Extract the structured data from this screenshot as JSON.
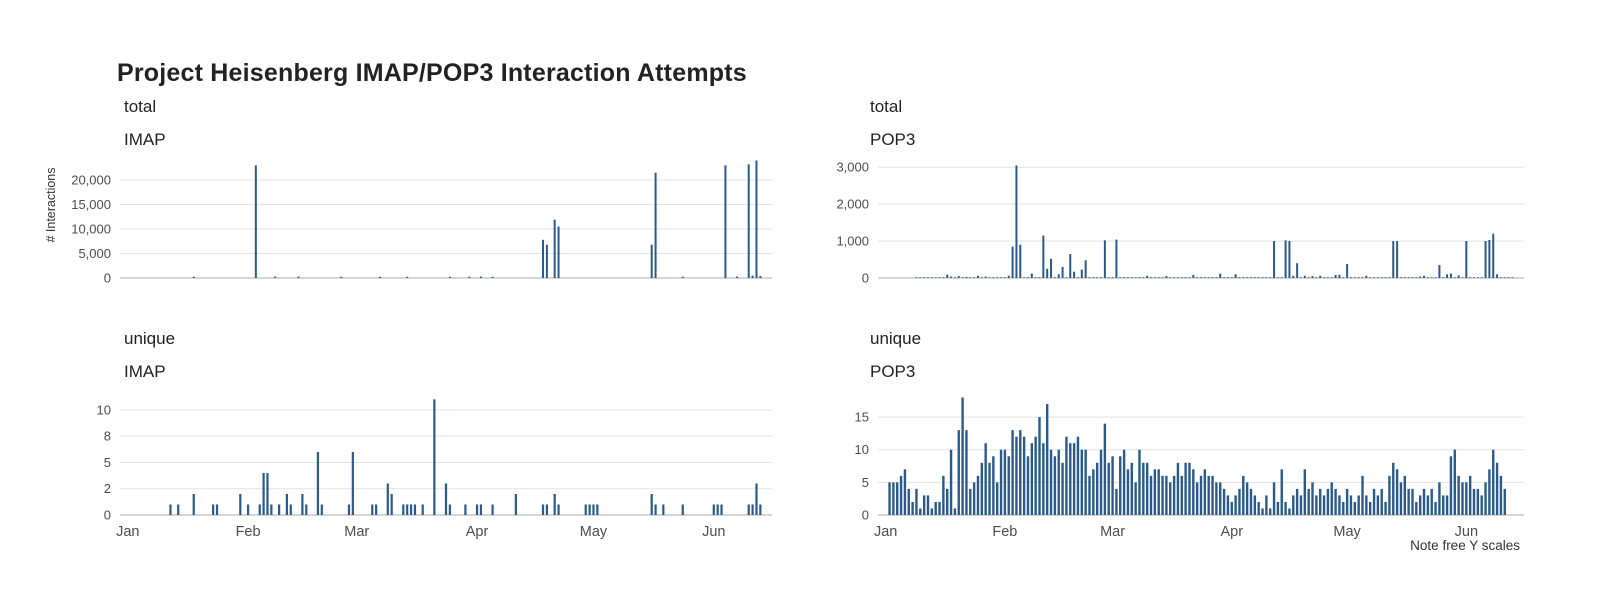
{
  "title": "Project Heisenberg IMAP/POP3 Interaction Attempts",
  "note": "Note free Y scales",
  "y_axis_title": "# Interactions",
  "colors": {
    "bar": "#2a5a8c",
    "grid": "#e3e3e3",
    "axis_line": "#c9c9c9",
    "tick_text": "#4d4d4d",
    "title_text": "#222222"
  },
  "chart_data": [
    {
      "type": "bar",
      "row": "total",
      "protocol": "IMAP",
      "position": "top-left",
      "ylabel": "# Interactions",
      "ylim": [
        0,
        24500
      ],
      "y_ticks": [
        {
          "v": 0,
          "label": "0"
        },
        {
          "v": 5000,
          "label": "5,000"
        },
        {
          "v": 10000,
          "label": "10,000"
        },
        {
          "v": 15000,
          "label": "15,000"
        },
        {
          "v": 20000,
          "label": "20,000"
        }
      ],
      "x_ticks": [
        {
          "day": 0,
          "label": "Jan"
        },
        {
          "day": 31,
          "label": "Feb"
        },
        {
          "day": 59,
          "label": "Mar"
        },
        {
          "day": 90,
          "label": "Apr"
        },
        {
          "day": 120,
          "label": "May"
        },
        {
          "day": 151,
          "label": "Jun"
        }
      ],
      "show_x_labels": false,
      "bars": [
        [
          17,
          250
        ],
        [
          33,
          23000
        ],
        [
          38,
          280
        ],
        [
          44,
          280
        ],
        [
          55,
          250
        ],
        [
          65,
          250
        ],
        [
          72,
          250
        ],
        [
          83,
          250
        ],
        [
          88,
          250
        ],
        [
          91,
          280
        ],
        [
          94,
          250
        ],
        [
          107,
          7800
        ],
        [
          108,
          6800
        ],
        [
          110,
          11900
        ],
        [
          111,
          10500
        ],
        [
          135,
          6800
        ],
        [
          136,
          21500
        ],
        [
          143,
          250
        ],
        [
          154,
          23000
        ],
        [
          157,
          300
        ],
        [
          160,
          23200
        ],
        [
          161,
          500
        ],
        [
          162,
          24000
        ],
        [
          163,
          400
        ]
      ]
    },
    {
      "type": "bar",
      "row": "total",
      "protocol": "POP3",
      "position": "top-right",
      "ylim": [
        0,
        3250
      ],
      "y_ticks": [
        {
          "v": 0,
          "label": "0"
        },
        {
          "v": 1000,
          "label": "1,000"
        },
        {
          "v": 2000,
          "label": "2,000"
        },
        {
          "v": 3000,
          "label": "3,000"
        }
      ],
      "x_ticks": [
        {
          "day": 0,
          "label": "Jan"
        },
        {
          "day": 31,
          "label": "Feb"
        },
        {
          "day": 59,
          "label": "Mar"
        },
        {
          "day": 90,
          "label": "Apr"
        },
        {
          "day": 120,
          "label": "May"
        },
        {
          "day": 151,
          "label": "Jun"
        }
      ],
      "show_x_labels": false,
      "baseline_noise": {
        "from": 8,
        "to": 163,
        "value": 18
      },
      "bars": [
        [
          16,
          90
        ],
        [
          17,
          40
        ],
        [
          19,
          50
        ],
        [
          21,
          30
        ],
        [
          24,
          60
        ],
        [
          26,
          40
        ],
        [
          32,
          60
        ],
        [
          33,
          850
        ],
        [
          34,
          3050
        ],
        [
          35,
          900
        ],
        [
          38,
          120
        ],
        [
          41,
          1150
        ],
        [
          42,
          250
        ],
        [
          43,
          520
        ],
        [
          45,
          100
        ],
        [
          46,
          300
        ],
        [
          48,
          650
        ],
        [
          49,
          170
        ],
        [
          51,
          230
        ],
        [
          52,
          480
        ],
        [
          57,
          1020
        ],
        [
          60,
          1040
        ],
        [
          68,
          60
        ],
        [
          73,
          50
        ],
        [
          80,
          80
        ],
        [
          87,
          120
        ],
        [
          91,
          100
        ],
        [
          101,
          1000
        ],
        [
          104,
          1020
        ],
        [
          105,
          1000
        ],
        [
          106,
          60
        ],
        [
          107,
          400
        ],
        [
          109,
          60
        ],
        [
          111,
          50
        ],
        [
          113,
          60
        ],
        [
          117,
          80
        ],
        [
          118,
          90
        ],
        [
          120,
          380
        ],
        [
          125,
          60
        ],
        [
          132,
          1000
        ],
        [
          133,
          1000
        ],
        [
          139,
          40
        ],
        [
          140,
          60
        ],
        [
          144,
          350
        ],
        [
          146,
          100
        ],
        [
          147,
          120
        ],
        [
          149,
          70
        ],
        [
          151,
          1000
        ],
        [
          156,
          1000
        ],
        [
          157,
          1030
        ],
        [
          158,
          1200
        ],
        [
          159,
          100
        ]
      ]
    },
    {
      "type": "bar",
      "row": "unique",
      "protocol": "IMAP",
      "position": "bottom-left",
      "ylim": [
        0,
        11.8
      ],
      "y_ticks": [
        {
          "v": 0,
          "label": "0"
        },
        {
          "v": 2.5,
          "label": "2"
        },
        {
          "v": 5,
          "label": "5"
        },
        {
          "v": 7.5,
          "label": "8"
        },
        {
          "v": 10,
          "label": "10"
        }
      ],
      "x_ticks": [
        {
          "day": 0,
          "label": "Jan"
        },
        {
          "day": 31,
          "label": "Feb"
        },
        {
          "day": 59,
          "label": "Mar"
        },
        {
          "day": 90,
          "label": "Apr"
        },
        {
          "day": 120,
          "label": "May"
        },
        {
          "day": 151,
          "label": "Jun"
        }
      ],
      "show_x_labels": true,
      "bars": [
        [
          11,
          1
        ],
        [
          13,
          1
        ],
        [
          17,
          2
        ],
        [
          22,
          1
        ],
        [
          23,
          1
        ],
        [
          29,
          2
        ],
        [
          31,
          1
        ],
        [
          34,
          1
        ],
        [
          35,
          4
        ],
        [
          36,
          4
        ],
        [
          37,
          1
        ],
        [
          39,
          1
        ],
        [
          41,
          2
        ],
        [
          42,
          1
        ],
        [
          45,
          2
        ],
        [
          46,
          1
        ],
        [
          49,
          6
        ],
        [
          50,
          1
        ],
        [
          57,
          1
        ],
        [
          58,
          6
        ],
        [
          63,
          1
        ],
        [
          64,
          1
        ],
        [
          67,
          3
        ],
        [
          68,
          2
        ],
        [
          71,
          1
        ],
        [
          72,
          1
        ],
        [
          73,
          1
        ],
        [
          74,
          1
        ],
        [
          76,
          1
        ],
        [
          79,
          11
        ],
        [
          82,
          3
        ],
        [
          83,
          1
        ],
        [
          87,
          1
        ],
        [
          90,
          1
        ],
        [
          91,
          1
        ],
        [
          94,
          1
        ],
        [
          100,
          2
        ],
        [
          107,
          1
        ],
        [
          108,
          1
        ],
        [
          110,
          2
        ],
        [
          111,
          1
        ],
        [
          118,
          1
        ],
        [
          119,
          1
        ],
        [
          120,
          1
        ],
        [
          121,
          1
        ],
        [
          135,
          2
        ],
        [
          136,
          1
        ],
        [
          138,
          1
        ],
        [
          143,
          1
        ],
        [
          151,
          1
        ],
        [
          152,
          1
        ],
        [
          153,
          1
        ],
        [
          160,
          1
        ],
        [
          161,
          1
        ],
        [
          162,
          3
        ],
        [
          163,
          1
        ]
      ]
    },
    {
      "type": "bar",
      "row": "unique",
      "protocol": "POP3",
      "position": "bottom-right",
      "ylim": [
        0,
        19
      ],
      "y_ticks": [
        {
          "v": 0,
          "label": "0"
        },
        {
          "v": 5,
          "label": "5"
        },
        {
          "v": 10,
          "label": "10"
        },
        {
          "v": 15,
          "label": "15"
        }
      ],
      "x_ticks": [
        {
          "day": 0,
          "label": "Jan"
        },
        {
          "day": 31,
          "label": "Feb"
        },
        {
          "day": 59,
          "label": "Mar"
        },
        {
          "day": 90,
          "label": "Apr"
        },
        {
          "day": 120,
          "label": "May"
        },
        {
          "day": 151,
          "label": "Jun"
        }
      ],
      "show_x_labels": true,
      "daily_series": {
        "start_day": 1,
        "values": [
          5,
          5,
          5,
          6,
          7,
          4,
          2,
          4,
          1,
          3,
          3,
          1,
          2,
          2,
          6,
          4,
          10,
          1,
          13,
          18,
          13,
          4,
          5,
          6,
          8,
          11,
          8,
          9,
          5,
          10,
          10,
          9,
          13,
          12,
          13,
          12,
          9,
          11,
          12,
          15,
          11,
          17,
          10,
          9,
          10,
          8,
          12,
          11,
          11,
          12,
          10,
          10,
          6,
          7,
          8,
          10,
          14,
          8,
          9,
          4,
          9,
          10,
          7,
          8,
          5,
          10,
          8,
          8,
          6,
          7,
          7,
          6,
          6,
          5,
          6,
          8,
          6,
          8,
          8,
          7,
          5,
          6,
          7,
          6,
          6,
          5,
          5,
          4,
          3,
          2,
          3,
          4,
          6,
          5,
          4,
          3,
          2,
          1,
          3,
          1,
          5,
          2,
          7,
          2,
          1,
          3,
          4,
          3,
          7,
          4,
          5,
          3,
          4,
          3,
          4,
          5,
          4,
          3,
          2,
          4,
          3,
          2,
          3,
          6,
          3,
          2,
          4,
          3,
          4,
          2,
          6,
          8,
          7,
          5,
          6,
          4,
          4,
          2,
          3,
          4,
          3,
          4,
          2,
          5,
          3,
          3,
          9,
          10,
          6,
          5,
          5,
          6,
          4,
          4,
          3,
          5,
          7,
          10,
          8,
          6,
          4
        ]
      },
      "bars": []
    }
  ]
}
